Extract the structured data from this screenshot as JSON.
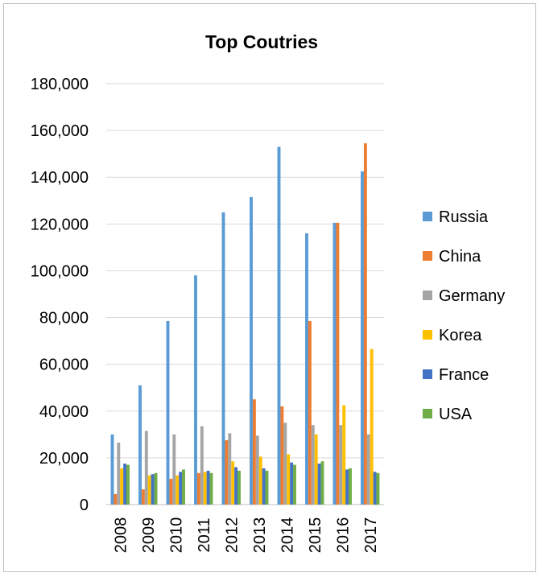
{
  "chart_data": {
    "type": "bar",
    "title": "Top Coutries",
    "xlabel": "",
    "ylabel": "",
    "categories": [
      "2008",
      "2009",
      "2010",
      "2011",
      "2012",
      "2013",
      "2014",
      "2015",
      "2016",
      "2017"
    ],
    "y_ticks": [
      "0",
      "20,000",
      "40,000",
      "60,000",
      "80,000",
      "100,000",
      "120,000",
      "140,000",
      "160,000",
      "180,000"
    ],
    "ylim": [
      0,
      180000
    ],
    "grid": true,
    "legend_position": "right",
    "series": [
      {
        "name": "Russia",
        "color": "#5b9bd5",
        "values": [
          30000,
          51000,
          78500,
          98000,
          125000,
          131500,
          153000,
          116000,
          120500,
          142500
        ]
      },
      {
        "name": "China",
        "color": "#ed7d31",
        "values": [
          4500,
          6500,
          11000,
          13500,
          27500,
          45000,
          42000,
          78500,
          120500,
          154500
        ]
      },
      {
        "name": "Germany",
        "color": "#a5a5a5",
        "values": [
          26500,
          31500,
          30000,
          33500,
          30500,
          29500,
          35000,
          34000,
          34000,
          30000
        ]
      },
      {
        "name": "Korea",
        "color": "#ffc000",
        "values": [
          15500,
          12500,
          12500,
          14000,
          18500,
          20500,
          21500,
          30000,
          42500,
          66500
        ]
      },
      {
        "name": "France",
        "color": "#4472c4",
        "values": [
          17500,
          13000,
          14000,
          14500,
          16000,
          15500,
          18000,
          17500,
          15000,
          14000
        ]
      },
      {
        "name": "USA",
        "color": "#70ad47",
        "values": [
          17000,
          13500,
          15000,
          13500,
          14500,
          14500,
          17000,
          18500,
          15500,
          13500
        ]
      }
    ]
  }
}
